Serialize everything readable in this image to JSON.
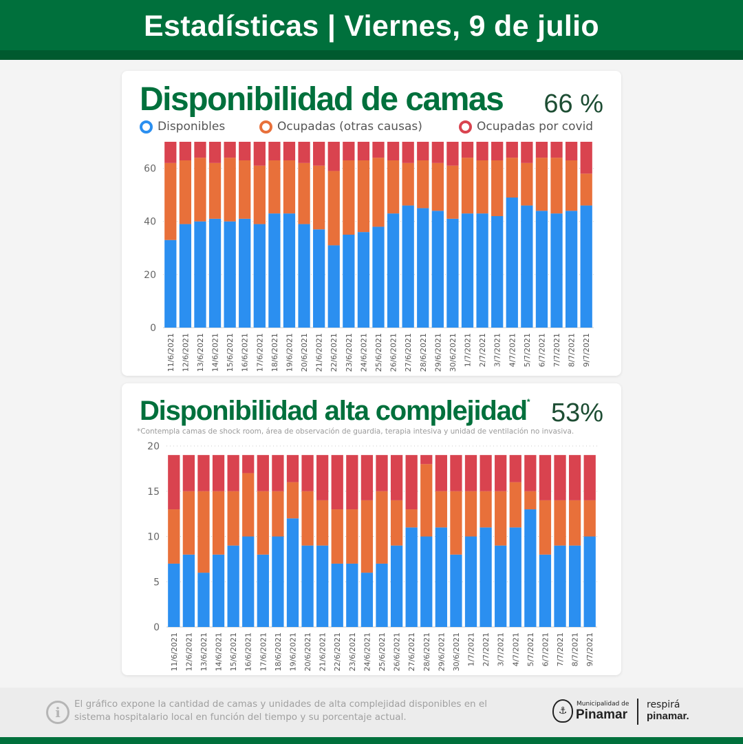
{
  "header": {
    "title": "Estadísticas | Viernes, 9 de julio"
  },
  "colors": {
    "disponibles": "#2b8ff0",
    "otras": "#e8703a",
    "covid": "#d9434f",
    "brand_green": "#00703c"
  },
  "card1": {
    "title": "Disponibilidad de camas",
    "percent": "66 %",
    "legend": [
      {
        "label": "Disponibles",
        "color": "#2b8ff0"
      },
      {
        "label": "Ocupadas (otras causas)",
        "color": "#e8703a"
      },
      {
        "label": "Ocupadas por covid",
        "color": "#d9434f"
      }
    ]
  },
  "card2": {
    "title": "Disponibilidad alta complejidad",
    "title_mark": "*",
    "percent": "53%",
    "footnote": "*Contempla camas de shock room, área de observación de guardia, terapia intesiva y unidad de ventilación no invasiva."
  },
  "footer": {
    "text": "El gráfico expone la cantidad de camas y unidades de alta complejidad disponibles en el sistema hospitalario local en función del tiempo y su porcentaje actual.",
    "info_icon": "info-icon",
    "logo_municipalidad": "Municipalidad de",
    "logo_pinamar": "Pinamar",
    "logo_respira": "respirá",
    "logo_pinamar2": "pinamar."
  },
  "chart_data": [
    {
      "type": "bar",
      "stacked": true,
      "categories": [
        "11/6/2021",
        "12/6/2021",
        "13/6/2021",
        "14/6/2021",
        "15/6/2021",
        "16/6/2021",
        "17/6/2021",
        "18/6/2021",
        "19/6/2021",
        "20/6/2021",
        "21/6/2021",
        "22/6/2021",
        "23/6/2021",
        "24/6/2021",
        "25/6/2021",
        "26/6/2021",
        "27/6/2021",
        "28/6/2021",
        "29/6/2021",
        "30/6/2021",
        "1/7/2021",
        "2/7/2021",
        "3/7/2021",
        "4/7/2021",
        "5/7/2021",
        "6/7/2021",
        "7/7/2021",
        "8/7/2021",
        "9/7/2021"
      ],
      "series": [
        {
          "name": "Disponibles",
          "color": "#2b8ff0",
          "values": [
            33,
            39,
            40,
            41,
            40,
            41,
            39,
            43,
            43,
            39,
            37,
            31,
            35,
            36,
            38,
            43,
            46,
            45,
            44,
            41,
            43,
            43,
            42,
            49,
            46,
            44,
            43,
            44,
            46
          ]
        },
        {
          "name": "Ocupadas (otras causas)",
          "color": "#e8703a",
          "values": [
            29,
            24,
            24,
            21,
            24,
            22,
            22,
            20,
            20,
            23,
            24,
            28,
            28,
            27,
            26,
            20,
            16,
            18,
            18,
            20,
            21,
            20,
            21,
            15,
            16,
            20,
            21,
            19,
            12
          ]
        },
        {
          "name": "Ocupadas por covid",
          "color": "#d9434f",
          "values": [
            8,
            7,
            6,
            8,
            6,
            7,
            9,
            7,
            7,
            8,
            9,
            11,
            7,
            7,
            6,
            7,
            8,
            7,
            8,
            9,
            6,
            7,
            7,
            6,
            8,
            6,
            6,
            7,
            12
          ]
        }
      ],
      "yticks": [
        0,
        20,
        40,
        60
      ],
      "ylim": [
        0,
        70
      ],
      "grid": true
    },
    {
      "type": "bar",
      "stacked": true,
      "categories": [
        "11/6/2021",
        "12/6/2021",
        "13/6/2021",
        "14/6/2021",
        "15/6/2021",
        "16/6/2021",
        "17/6/2021",
        "18/6/2021",
        "19/6/2021",
        "20/6/2021",
        "21/6/2021",
        "22/6/2021",
        "23/6/2021",
        "24/6/2021",
        "25/6/2021",
        "26/6/2021",
        "27/6/2021",
        "28/6/2021",
        "29/6/2021",
        "30/6/2021",
        "1/7/2021",
        "2/7/2021",
        "3/7/2021",
        "4/7/2021",
        "5/7/2021",
        "6/7/2021",
        "7/7/2021",
        "8/7/2021",
        "9/7/2021"
      ],
      "series": [
        {
          "name": "Disponibles",
          "color": "#2b8ff0",
          "values": [
            7,
            8,
            6,
            8,
            9,
            10,
            8,
            10,
            12,
            9,
            9,
            7,
            7,
            6,
            7,
            9,
            11,
            10,
            11,
            8,
            10,
            11,
            9,
            11,
            13,
            8,
            9,
            9,
            10
          ]
        },
        {
          "name": "Ocupadas (otras causas)",
          "color": "#e8703a",
          "values": [
            6,
            7,
            9,
            7,
            6,
            7,
            7,
            5,
            4,
            6,
            5,
            6,
            6,
            8,
            8,
            5,
            2,
            8,
            4,
            7,
            5,
            4,
            6,
            5,
            2,
            6,
            5,
            5,
            4
          ]
        },
        {
          "name": "Ocupadas por covid",
          "color": "#d9434f",
          "values": [
            6,
            4,
            4,
            4,
            4,
            2,
            4,
            4,
            3,
            4,
            5,
            6,
            6,
            5,
            4,
            5,
            6,
            1,
            4,
            4,
            4,
            4,
            4,
            3,
            4,
            5,
            5,
            5,
            5
          ]
        }
      ],
      "yticks": [
        0,
        5,
        10,
        15,
        20
      ],
      "ylim": [
        0,
        20
      ],
      "grid": true
    }
  ]
}
